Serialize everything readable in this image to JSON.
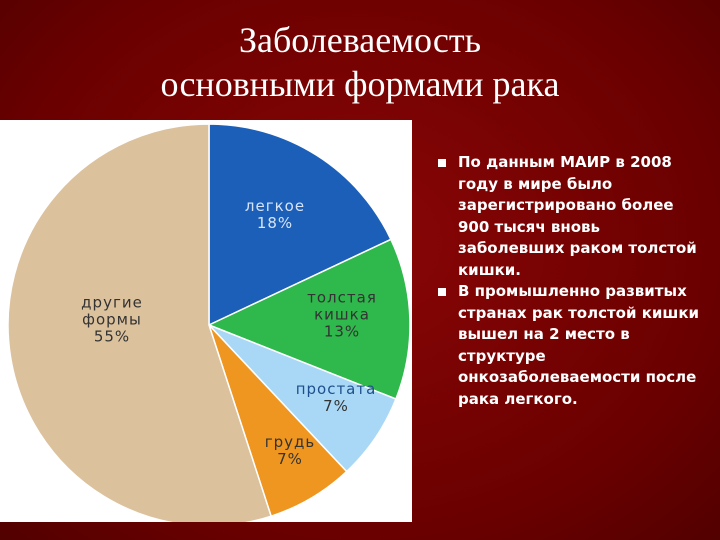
{
  "title": "Заболеваемость основными формами рака",
  "chart_data": {
    "type": "pie",
    "categories": [
      "легкое",
      "толстая кишка",
      "простата",
      "грудь",
      "другие формы"
    ],
    "values": [
      18,
      13,
      7,
      7,
      55
    ],
    "value_labels": [
      "18%",
      "13%",
      "7%",
      "7%",
      "55%"
    ],
    "colors": [
      "#1c5fb8",
      "#2fb84c",
      "#a9d8f6",
      "#ef9620",
      "#dcc19d"
    ]
  },
  "bullets": [
    "По данным МАИР в 2008 году в мире было зарегистрировано более 900 тысяч вновь заболевших раком толстой кишки.",
    "В промышленно развитых странах рак толстой кишки вышел на 2 место в структуре онкозаболеваемости после рака легкого."
  ]
}
